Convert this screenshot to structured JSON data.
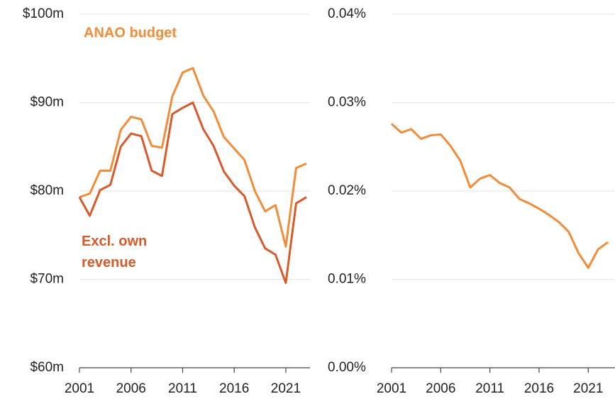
{
  "chart_data": [
    {
      "type": "line",
      "x": [
        2001,
        2002,
        2003,
        2004,
        2005,
        2006,
        2007,
        2008,
        2009,
        2010,
        2011,
        2012,
        2013,
        2014,
        2015,
        2016,
        2017,
        2018,
        2019,
        2020,
        2021,
        2022,
        2023
      ],
      "series": [
        {
          "name": "ANAO budget",
          "color": "#f28c38",
          "values": [
            79.3,
            79.7,
            82.3,
            82.3,
            86.9,
            88.4,
            88.1,
            85.1,
            84.9,
            90.7,
            93.4,
            93.9,
            90.8,
            89.0,
            86.1,
            84.8,
            83.5,
            80.0,
            77.7,
            78.4,
            73.7,
            82.6,
            83.1
          ]
        },
        {
          "name": "Excl. own revenue",
          "color": "#d85a2a",
          "values": [
            79.3,
            77.2,
            80.1,
            80.7,
            85.0,
            86.5,
            86.2,
            82.3,
            81.7,
            88.7,
            89.4,
            90.0,
            87.0,
            85.1,
            82.2,
            80.6,
            79.4,
            75.9,
            73.5,
            72.8,
            69.6,
            78.6,
            79.3
          ]
        }
      ],
      "xlim": [
        2001,
        2023
      ],
      "xticks": [
        2001,
        2006,
        2011,
        2016,
        2021
      ],
      "ylim": [
        60,
        100
      ],
      "yticks": [
        {
          "value": 60,
          "label": "$60m"
        },
        {
          "value": 70,
          "label": "$70m"
        },
        {
          "value": 80,
          "label": "$80m"
        },
        {
          "value": 90,
          "label": "$90m"
        },
        {
          "value": 100,
          "label": "$100m"
        }
      ],
      "grid": true
    },
    {
      "type": "line",
      "x": [
        2001,
        2002,
        2003,
        2004,
        2005,
        2006,
        2007,
        2008,
        2009,
        2010,
        2011,
        2012,
        2013,
        2014,
        2015,
        2016,
        2017,
        2018,
        2019,
        2020,
        2021,
        2022,
        2023
      ],
      "series": [
        {
          "color": "#f28c38",
          "values": [
            0.0276,
            0.0266,
            0.027,
            0.0259,
            0.0263,
            0.0264,
            0.0251,
            0.0234,
            0.0204,
            0.0214,
            0.0218,
            0.0209,
            0.0204,
            0.0191,
            0.0186,
            0.018,
            0.0173,
            0.0165,
            0.0154,
            0.013,
            0.0113,
            0.0134,
            0.0142
          ]
        }
      ],
      "xlim": [
        2001,
        2023
      ],
      "xticks": [
        2001,
        2006,
        2011,
        2016,
        2021
      ],
      "ylim": [
        0,
        0.04
      ],
      "yticks": [
        {
          "value": 0,
          "label": "0.00%"
        },
        {
          "value": 0.01,
          "label": "0.01%"
        },
        {
          "value": 0.02,
          "label": "0.02%"
        },
        {
          "value": 0.03,
          "label": "0.03%"
        },
        {
          "value": 0.04,
          "label": "0.04%"
        }
      ],
      "grid": true
    }
  ]
}
